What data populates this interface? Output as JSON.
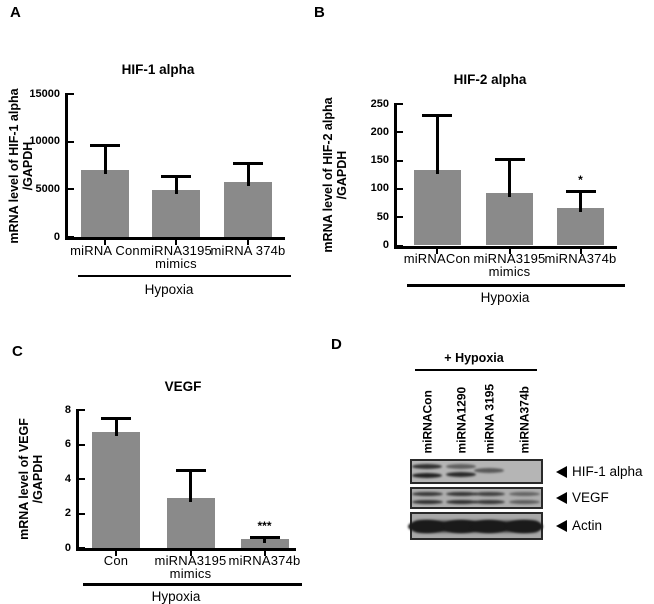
{
  "figure": {
    "letters": [
      "A",
      "B",
      "C",
      "D"
    ],
    "background": "#ffffff"
  },
  "colors": {
    "bar_fill": "#8a8a8a",
    "axis": "#000000",
    "text": "#000000",
    "blot_border": "#2a2a2a",
    "band_dark": "#1a1a1a"
  },
  "chart_data": [
    {
      "type": "bar",
      "panel": "A",
      "title": "HIF-1 alpha",
      "ylabel_lines": [
        "mRNA level of HIF-1 alpha",
        "/GAPDH"
      ],
      "categories": [
        [
          "miRNA Con"
        ],
        [
          "miRNA3195",
          "mimics"
        ],
        [
          "miRNA 374b"
        ]
      ],
      "values": [
        7000,
        4950,
        5800
      ],
      "errors_upper": [
        9650,
        6400,
        7750
      ],
      "yticks": [
        0,
        5000,
        10000,
        15000
      ],
      "ylim": [
        0,
        15000
      ],
      "sig": [
        "",
        "",
        ""
      ],
      "group_label": "Hypoxia",
      "grid": false
    },
    {
      "type": "bar",
      "panel": "B",
      "title": "HIF-2 alpha",
      "ylabel_lines": [
        "mRNA level of HIF-2 alpha",
        "/GAPDH"
      ],
      "categories": [
        [
          "miRNACon"
        ],
        [
          "miRNA3195",
          "mimics"
        ],
        [
          "miRNA374b"
        ]
      ],
      "values": [
        133,
        93,
        67
      ],
      "errors_upper": [
        230,
        153,
        97
      ],
      "yticks": [
        0,
        50,
        100,
        150,
        200,
        250
      ],
      "ylim": [
        0,
        250
      ],
      "sig": [
        "",
        "",
        "*"
      ],
      "group_label": "Hypoxia",
      "grid": false
    },
    {
      "type": "bar",
      "panel": "C",
      "title": "VEGF",
      "ylabel_lines": [
        "mRNA level of VEGF",
        "/GAPDH"
      ],
      "categories": [
        [
          "Con"
        ],
        [
          "miRNA3195",
          "mimics"
        ],
        [
          "miRNA374b"
        ]
      ],
      "values": [
        6.75,
        2.9,
        0.5
      ],
      "errors_upper": [
        7.55,
        4.55,
        0.62
      ],
      "yticks": [
        0,
        2,
        4,
        6,
        8
      ],
      "ylim": [
        0,
        8
      ],
      "sig": [
        "",
        "",
        "***"
      ],
      "group_label": "Hypoxia",
      "grid": false
    }
  ],
  "blot": {
    "panel": "D",
    "header": "+ Hypoxia",
    "lanes": [
      "miRNACon",
      "miRNA1290",
      "miRNA 3195",
      "miRNA374b"
    ],
    "rows": [
      {
        "label": "HIF-1 alpha",
        "bg": "#b5b5b5",
        "thick": false,
        "bands": [
          [
            {
              "p": 0.3,
              "i": 0.85
            },
            {
              "p": 0.64,
              "i": 0.95
            }
          ],
          [
            {
              "p": 0.3,
              "i": 0.55
            },
            {
              "p": 0.62,
              "i": 0.9
            }
          ],
          [
            {
              "p": 0.46,
              "i": 0.6
            }
          ],
          []
        ]
      },
      {
        "label": "VEGF",
        "bg": "#aeaeae",
        "thick": false,
        "bands": [
          [
            {
              "p": 0.32,
              "i": 0.8
            },
            {
              "p": 0.66,
              "i": 0.85
            }
          ],
          [
            {
              "p": 0.32,
              "i": 0.82
            },
            {
              "p": 0.66,
              "i": 0.85
            }
          ],
          [
            {
              "p": 0.32,
              "i": 0.75
            },
            {
              "p": 0.66,
              "i": 0.8
            }
          ],
          [
            {
              "p": 0.32,
              "i": 0.5
            },
            {
              "p": 0.66,
              "i": 0.55
            }
          ]
        ]
      },
      {
        "label": "Actin",
        "bg": "#a8a8a8",
        "thick": true,
        "bands": [
          [
            {
              "p": 0.52,
              "i": 1
            }
          ],
          [
            {
              "p": 0.52,
              "i": 1
            }
          ],
          [
            {
              "p": 0.52,
              "i": 1
            }
          ],
          [
            {
              "p": 0.52,
              "i": 1
            }
          ]
        ]
      }
    ]
  }
}
